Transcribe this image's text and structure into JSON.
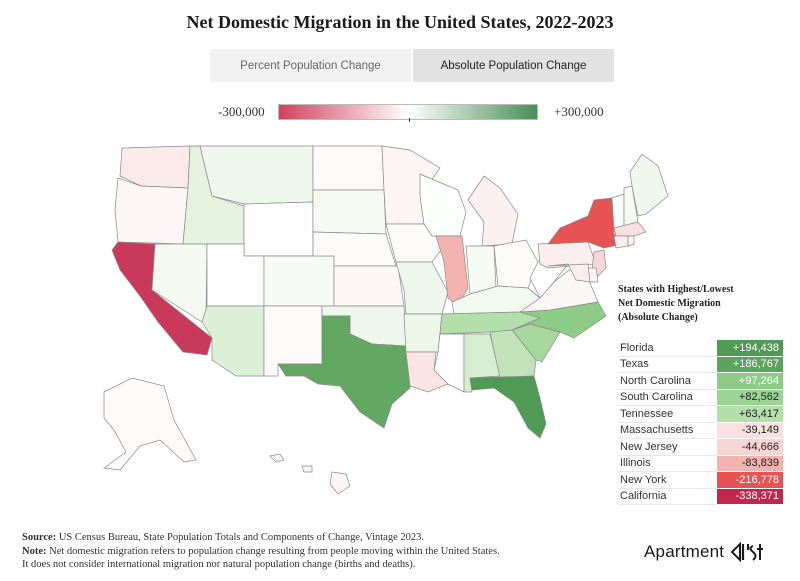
{
  "title": "Net Domestic Migration in the United States, 2022-2023",
  "tabs": [
    {
      "label": "Percent Population Change",
      "active": false
    },
    {
      "label": "Absolute Population Change",
      "active": true
    }
  ],
  "legend": {
    "min_label": "-300,000",
    "max_label": "+300,000",
    "min_value": -300000,
    "max_value": 300000,
    "colors": {
      "negative": "#d33f5c",
      "mid": "#ffffff",
      "positive": "#4a8f56"
    }
  },
  "table": {
    "title_line1": "States with Highest/Lowest",
    "title_line2": "Net Domestic Migration",
    "title_line3": "(Absolute Change)",
    "rows": [
      {
        "state": "Florida",
        "value": "+194,438",
        "color": "#4f9a55",
        "text_color": "#ffffff"
      },
      {
        "state": "Texas",
        "value": "+186,767",
        "color": "#5aa45e",
        "text_color": "#ffffff"
      },
      {
        "state": "North Carolina",
        "value": "+97,264",
        "color": "#8dcc86",
        "text_color": "#ffffff"
      },
      {
        "state": "South Carolina",
        "value": "+82,562",
        "color": "#9cd496",
        "text_color": "#222222"
      },
      {
        "state": "Tennessee",
        "value": "+63,417",
        "color": "#b3dfaa",
        "text_color": "#222222"
      },
      {
        "state": "Massachusetts",
        "value": "-39,149",
        "color": "#fbe0e0",
        "text_color": "#222222"
      },
      {
        "state": "New Jersey",
        "value": "-44,666",
        "color": "#f9d6d6",
        "text_color": "#222222"
      },
      {
        "state": "Illinois",
        "value": "-83,839",
        "color": "#f5b3b0",
        "text_color": "#222222"
      },
      {
        "state": "New York",
        "value": "-216,778",
        "color": "#e55355",
        "text_color": "#ffffff"
      },
      {
        "state": "California",
        "value": "-338,371",
        "color": "#c2264f",
        "text_color": "#ffffff"
      }
    ]
  },
  "footer": {
    "source_label": "Source:",
    "source_text": " US Census Bureau, State Population Totals and Components of Change, Vintage 2023.",
    "note_label": "Note:",
    "note_text": " Net domestic migration refers to population change resulting from people moving within the United States.",
    "note_text2": "It does not consider international migration nor natural population change (births and deaths)."
  },
  "brand": {
    "name": "Apartment",
    "mark_color": "#1a1a1a"
  },
  "state_colors": {
    "WA": "#fbeaea",
    "OR": "#fdf6f6",
    "CA": "#c93a5a",
    "ID": "#e4f2df",
    "NV": "#f4faf2",
    "MT": "#eef7eb",
    "WY": "#fdfdfd",
    "UT": "#fefefe",
    "AZ": "#dcefd7",
    "CO": "#f7fbf5",
    "NM": "#fefafa",
    "ND": "#fefafa",
    "SD": "#f5fbf3",
    "NE": "#fdfafa",
    "KS": "#fdf7f7",
    "OK": "#eef7eb",
    "TX": "#62a863",
    "MN": "#fdf5f5",
    "IA": "#fdfafa",
    "MO": "#eef7eb",
    "AR": "#ecf6e9",
    "LA": "#fbe4e4",
    "WI": "#fcfefb",
    "IL": "#f5b3b0",
    "MI": "#fcf0f0",
    "IN": "#f6fbf4",
    "OH": "#fdfafa",
    "KY": "#f2f9ef",
    "TN": "#b3dfaa",
    "MS": "#fefefe",
    "AL": "#d6edd0",
    "GA": "#c2e3b9",
    "FL": "#4f9a55",
    "SC": "#a6d89e",
    "NC": "#8dcc86",
    "VA": "#fdf8f8",
    "WV": "#fdfefd",
    "PA": "#fbeeee",
    "NY": "#e55355",
    "VT": "#fefefe",
    "NH": "#f5faf3",
    "ME": "#f0f8ed",
    "MA": "#fbe0e0",
    "CT": "#fcecec",
    "RI": "#fdf3f3",
    "NJ": "#f9d6d6",
    "DE": "#f3faf1",
    "MD": "#fcecec",
    "AK": "#fefafa",
    "HI": "#fdf5f5"
  }
}
